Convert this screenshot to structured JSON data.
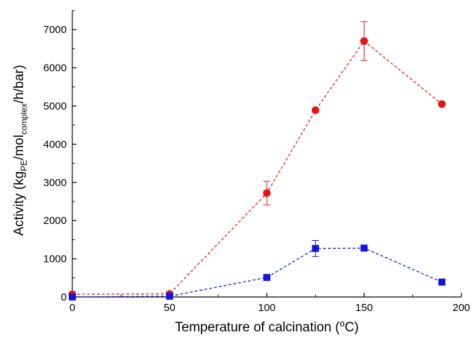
{
  "chart_data": {
    "type": "line",
    "xlabel": "Temperature of calcination (°C)",
    "xlabel_parts": {
      "pre": "Temperature of calcination (",
      "sup": "o",
      "post": "C)"
    },
    "ylabel": "Activity (kgPE/molcomplex/h/bar)",
    "ylabel_parts": {
      "pre": "Activity (kg",
      "sub1": "PE",
      "mid": "/mol",
      "sub2": "complex",
      "post": "/h/bar)"
    },
    "xlim": [
      0,
      200
    ],
    "ylim": [
      0,
      7500
    ],
    "x_ticks": [
      "0",
      "50",
      "100",
      "150",
      "200"
    ],
    "y_ticks": [
      "0",
      "1000",
      "2000",
      "3000",
      "4000",
      "5000",
      "6000",
      "7000"
    ],
    "grid": false,
    "legend": "none",
    "series": [
      {
        "color": "#e8141b",
        "marker": "circle",
        "line_style": "dashed",
        "points": [
          {
            "x": 0,
            "y": 70
          },
          {
            "x": 50,
            "y": 80
          },
          {
            "x": 100,
            "y": 2720,
            "err": 310
          },
          {
            "x": 125,
            "y": 4890
          },
          {
            "x": 150,
            "y": 6700,
            "err": 510
          },
          {
            "x": 190,
            "y": 5050
          }
        ]
      },
      {
        "color": "#1414e0",
        "marker": "square",
        "line_style": "dashed",
        "points": [
          {
            "x": 0,
            "y": 0
          },
          {
            "x": 50,
            "y": 20
          },
          {
            "x": 100,
            "y": 510
          },
          {
            "x": 125,
            "y": 1270,
            "err": 210
          },
          {
            "x": 150,
            "y": 1280,
            "err": 60
          },
          {
            "x": 190,
            "y": 390
          }
        ]
      }
    ]
  }
}
